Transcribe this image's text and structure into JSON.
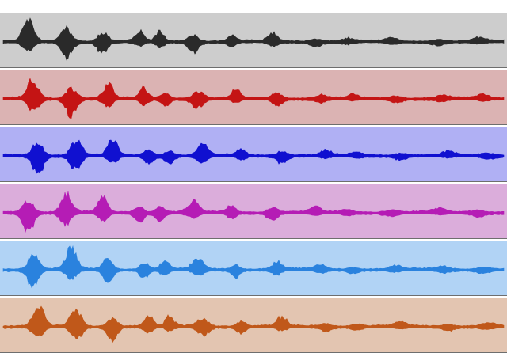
{
  "tracks": [
    {
      "id": "track-1",
      "background": "#cdcdcd",
      "waveform_color": "#2a2a2a"
    },
    {
      "id": "track-2",
      "background": "#dbb3b3",
      "waveform_color": "#c41414"
    },
    {
      "id": "track-3",
      "background": "#b0b0f4",
      "waveform_color": "#1010d0"
    },
    {
      "id": "track-4",
      "background": "#dbaddb",
      "waveform_color": "#b51cb5"
    },
    {
      "id": "track-5",
      "background": "#b1d3f5",
      "waveform_color": "#2a82de"
    },
    {
      "id": "track-6",
      "background": "#e3c5b1",
      "waveform_color": "#c0581a"
    }
  ],
  "separator_color": "#6e6e6e"
}
